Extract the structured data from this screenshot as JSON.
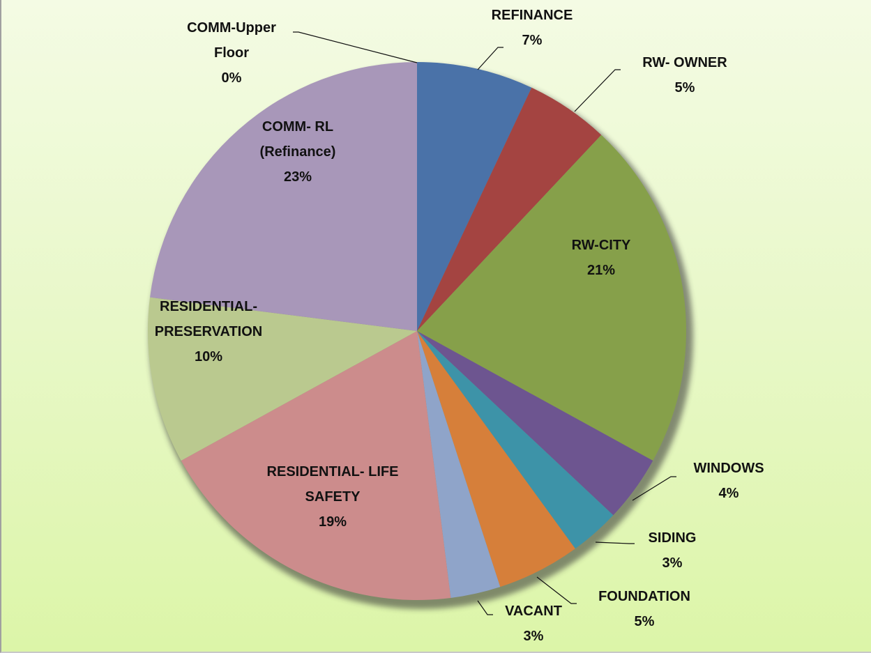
{
  "chart_data": {
    "type": "pie",
    "categories": [
      "REFINANCE",
      "RW- OWNER",
      "RW-CITY",
      "WINDOWS",
      "SIDING",
      "FOUNDATION",
      "VACANT",
      "RESIDENTIAL- LIFE SAFETY",
      "RESIDENTIAL- PRESERVATION",
      "COMM- RL (Refinance)",
      "COMM-Upper Floor"
    ],
    "values": [
      7,
      5,
      21,
      4,
      3,
      5,
      3,
      19,
      10,
      23,
      0
    ],
    "value_labels": [
      "7%",
      "5%",
      "21%",
      "4%",
      "3%",
      "5%",
      "3%",
      "19%",
      "10%",
      "23%",
      "0%"
    ],
    "colors": [
      "#4a72a8",
      "#a44441",
      "#86a04a",
      "#6d5590",
      "#3d93a8",
      "#d67f3a",
      "#8fa4c9",
      "#cc8c8c",
      "#bac98f",
      "#a897b9",
      "#4f81bd"
    ]
  }
}
